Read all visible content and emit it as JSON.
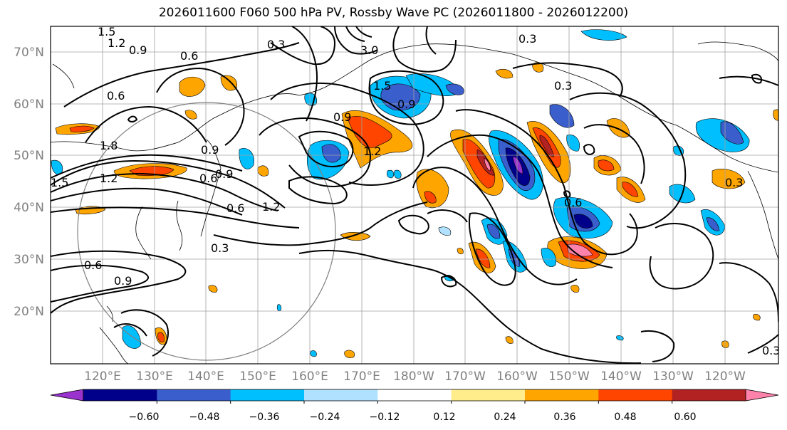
{
  "title": "2026011600 F060 500 hPa PV, Rossby Wave PC (2026011800 - 2026012200)",
  "map": {
    "lat_labels": [
      "70°N",
      "60°N",
      "50°N",
      "40°N",
      "30°N",
      "20°N"
    ],
    "lon_labels": [
      "120°E",
      "130°E",
      "140°E",
      "150°E",
      "160°E",
      "170°E",
      "180°W",
      "170°W",
      "160°W",
      "150°W",
      "140°W",
      "130°W",
      "120°W"
    ],
    "contour_labels": [
      "1.5",
      "1.2",
      "0.9",
      "0.6",
      "0.3",
      "0.6",
      "0.9",
      "1.2",
      "1.5",
      "1.8",
      "0.6",
      "0.9",
      "0.6",
      "0.3",
      "0.6",
      "0.9",
      "0.9",
      "1.2",
      "1.5",
      "3.0",
      "0.3",
      "0.3",
      "0.9",
      "1.2",
      "0.6",
      "0.3",
      "0.3"
    ]
  },
  "colorbar": {
    "tick_labels": [
      "−0.60",
      "−0.48",
      "−0.36",
      "−0.24",
      "−0.12",
      "0.12",
      "0.24",
      "0.36",
      "0.48",
      "0.60"
    ],
    "colors": [
      "#9a32cd",
      "#00008b",
      "#3a5fcd",
      "#00bfff",
      "#b0e2ff",
      "#ffffff",
      "#ffec8b",
      "#ffa500",
      "#ff4500",
      "#b22222",
      "#ff82ab"
    ]
  }
}
